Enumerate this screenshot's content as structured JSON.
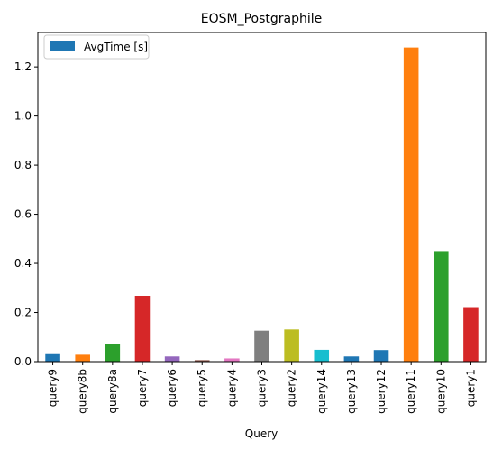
{
  "chart_data": {
    "type": "bar",
    "title": "EOSM_Postgraphile",
    "xlabel": "Query",
    "ylabel": "",
    "ylim": [
      0,
      1.34
    ],
    "yticks": [
      0.0,
      0.2,
      0.4,
      0.6,
      0.8,
      1.0,
      1.2
    ],
    "ytick_labels": [
      "0.0",
      "0.2",
      "0.4",
      "0.6",
      "0.8",
      "1.0",
      "1.2"
    ],
    "categories": [
      "query9",
      "query8b",
      "query8a",
      "query7",
      "query6",
      "query5",
      "query4",
      "query3",
      "query2",
      "query14",
      "query13",
      "query12",
      "query11",
      "query10",
      "query1"
    ],
    "series": [
      {
        "name": "AvgTime [s]",
        "values": [
          0.034,
          0.028,
          0.071,
          0.268,
          0.021,
          0.006,
          0.013,
          0.126,
          0.131,
          0.048,
          0.021,
          0.047,
          1.279,
          0.45,
          0.222
        ]
      }
    ],
    "bar_colors": [
      "#1f77b4",
      "#ff7f0e",
      "#2ca02c",
      "#d62728",
      "#9467bd",
      "#8c564b",
      "#e377c2",
      "#7f7f7f",
      "#bcbd22",
      "#17becf",
      "#1f77b4",
      "#1f77b4",
      "#ff7f0e",
      "#2ca02c",
      "#d62728"
    ],
    "legend": {
      "placement": "top-left",
      "color": "#1f77b4"
    },
    "grid": false
  }
}
